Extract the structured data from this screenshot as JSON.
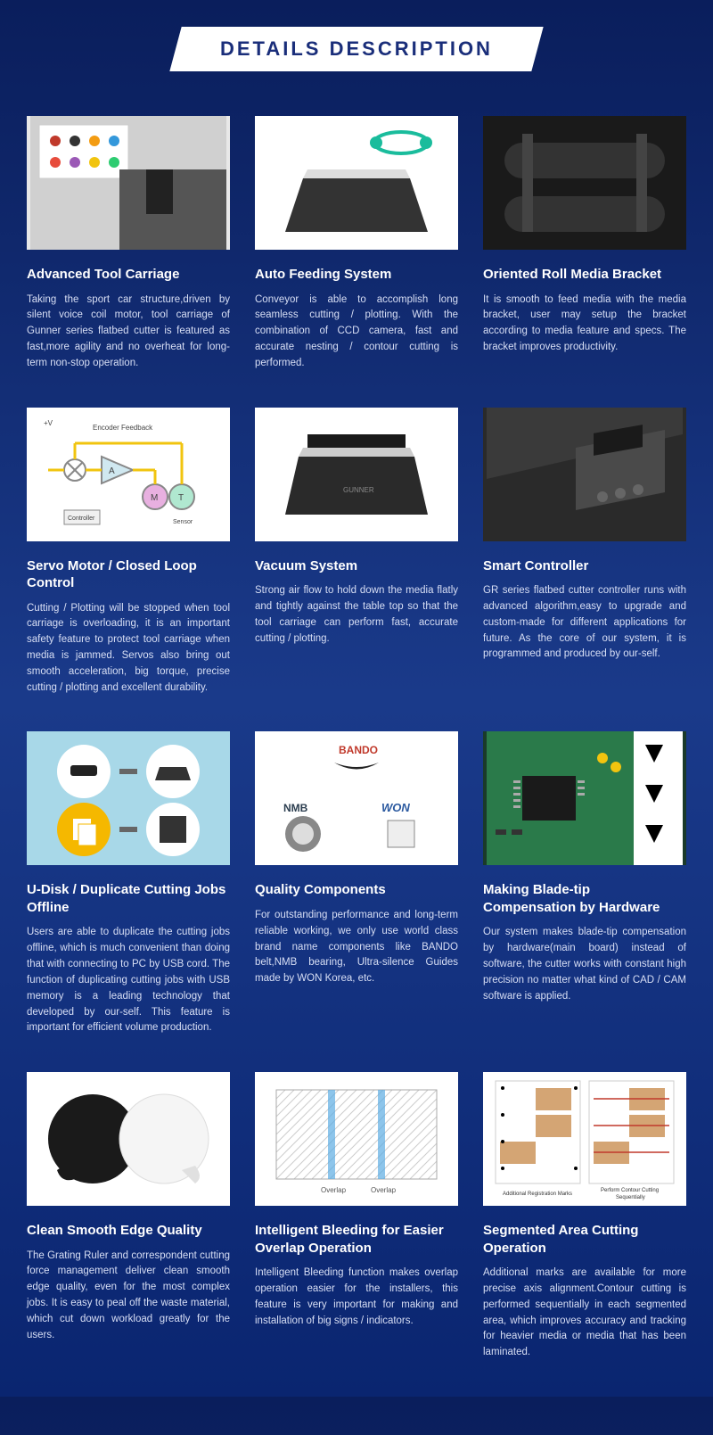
{
  "header": {
    "title": "DETAILS DESCRIPTION",
    "title_color": "#1a2e7a",
    "banner_bg": "#ffffff",
    "page_bg_gradient": [
      "#0a1e5c",
      "#1a3a8a",
      "#0a2570"
    ]
  },
  "cards": [
    {
      "title": "Advanced Tool Carriage",
      "description": "Taking the sport car structure,driven by silent voice coil motor, tool carriage of Gunner series flatbed cutter is featured as fast,more agility and no overheat for long-term non-stop operation.",
      "image_type": "photo-carriage",
      "image_bg": "#e8e8e8"
    },
    {
      "title": "Auto Feeding System",
      "description": "Conveyor is able to accomplish long seamless cutting / plotting. With the combination of CCD camera, fast and accurate nesting / contour cutting is performed.",
      "image_type": "photo-conveyor",
      "image_bg": "#ffffff"
    },
    {
      "title": "Oriented Roll Media Bracket",
      "description": "It is smooth to feed media with the media bracket, user may setup the bracket according to media feature and specs. The bracket improves productivity.",
      "image_type": "photo-bracket",
      "image_bg": "#1a1a1a"
    },
    {
      "title": "Servo Motor / Closed Loop Control",
      "description": "Cutting / Plotting will be stopped when tool carriage is overloading, it is an important safety feature to protect tool carriage when media is jammed. Servos also bring out smooth acceleration, big torque, precise cutting / plotting and excellent durability.",
      "image_type": "diagram-servo",
      "image_bg": "#ffffff"
    },
    {
      "title": "Vacuum System",
      "description": "Strong air flow to hold down the media flatly and tightly against the table top so that the tool carriage can perform fast, accurate cutting / plotting.",
      "image_type": "photo-vacuum",
      "image_bg": "#ffffff"
    },
    {
      "title": "Smart Controller",
      "description": "GR series flatbed cutter controller runs with advanced algorithm,easy to upgrade and custom-made for different applications for future. As the core of our system, it is programmed and produced by our-self.",
      "image_type": "photo-controller",
      "image_bg": "#2a2a2a"
    },
    {
      "title": "U-Disk / Duplicate Cutting Jobs Offline",
      "description": "Users are able to duplicate the cutting jobs offline, which is much convenient than doing that with connecting to PC by USB cord. The function of duplicating cutting jobs with USB memory is a leading technology that developed by our-self. This feature is important for efficient volume production.",
      "image_type": "diagram-usb",
      "image_bg": "#a8d8e8"
    },
    {
      "title": "Quality Components",
      "description": "For outstanding performance and long-term reliable working, we only use world class brand name components like BANDO belt,NMB bearing, Ultra-silence Guides made by WON Korea, etc.",
      "image_type": "diagram-brands",
      "image_bg": "#ffffff"
    },
    {
      "title": "Making Blade-tip Compensation by Hardware",
      "description": "Our system makes blade-tip compensation by hardware(main board) instead of software, the cutter works with constant high precision no matter what kind of CAD / CAM software is applied.",
      "image_type": "photo-pcb",
      "image_bg": "#1a3a2a"
    },
    {
      "title": "Clean Smooth Edge Quality",
      "description": "The Grating Ruler and correspondent cutting force management deliver clean smooth edge quality, even for the most complex jobs. It is easy to peal off the waste material, which cut down workload greatly for the users.",
      "image_type": "diagram-circles",
      "image_bg": "#ffffff"
    },
    {
      "title": "Intelligent Bleeding for Easier Overlap Operation",
      "description": "Intelligent Bleeding function makes overlap operation easier for the installers, this feature is very important for making and installation of big signs / indicators.",
      "image_type": "diagram-overlap",
      "image_bg": "#ffffff"
    },
    {
      "title": "Segmented Area Cutting Operation",
      "description": "Additional marks are available for more precise axis alignment.Contour cutting is performed sequentially in each segmented area, which improves accuracy and tracking for heavier media or media that has been laminated.",
      "image_type": "diagram-segmented",
      "image_bg": "#ffffff"
    }
  ],
  "styling": {
    "card_title_color": "#ffffff",
    "card_title_fontsize": 15,
    "card_desc_color": "#d8dff5",
    "card_desc_fontsize": 11.5,
    "grid_columns": 3,
    "grid_gap_row": 40,
    "grid_gap_col": 28,
    "padding_horizontal": 30,
    "card_image_height": 150
  }
}
